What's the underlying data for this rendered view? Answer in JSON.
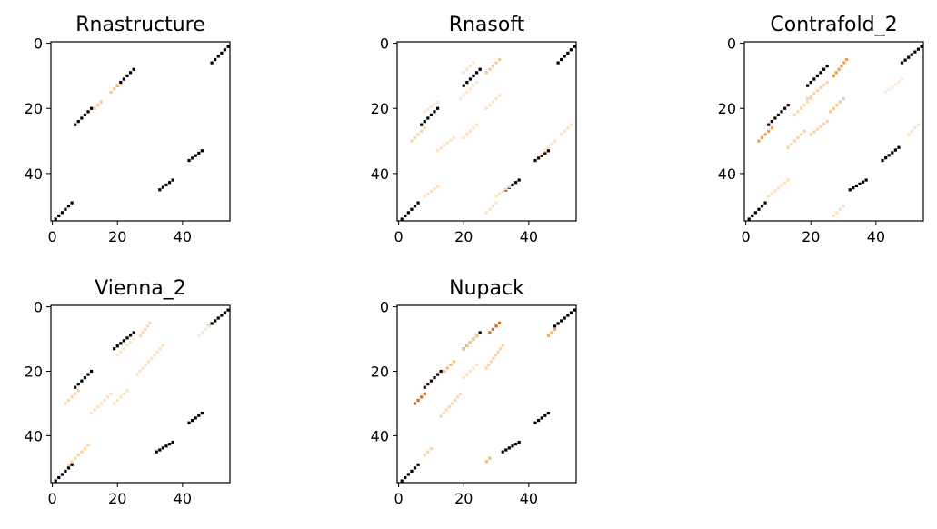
{
  "chart_data": [
    {
      "type": "heatmap",
      "title": "Rnastructure",
      "xlim": [
        0,
        55
      ],
      "ylim": [
        55,
        0
      ],
      "xticks": [
        0,
        20,
        40
      ],
      "yticks": [
        0,
        20,
        40
      ],
      "colormap": "white-orange-black",
      "cells": [
        {
          "segment": [
            [
              49,
              6
            ],
            [
              54,
              1
            ]
          ],
          "value": 1.0
        },
        {
          "segment": [
            [
              20,
              13
            ],
            [
              25,
              8
            ]
          ],
          "value": 1.0
        },
        {
          "segment": [
            [
              7,
              25
            ],
            [
              12,
              20
            ]
          ],
          "value": 1.0
        },
        {
          "segment": [
            [
              42,
              36
            ],
            [
              46,
              33
            ]
          ],
          "value": 1.0
        },
        {
          "segment": [
            [
              33,
              45
            ],
            [
              37,
              42
            ]
          ],
          "value": 1.0
        },
        {
          "segment": [
            [
              1,
              54
            ],
            [
              6,
              49
            ]
          ],
          "value": 1.0
        },
        {
          "segment": [
            [
              18,
              15
            ],
            [
              20,
              13
            ]
          ],
          "value": 0.25
        },
        {
          "segment": [
            [
              13,
              20
            ],
            [
              15,
              18
            ]
          ],
          "value": 0.25
        }
      ]
    },
    {
      "type": "heatmap",
      "title": "Rnasoft",
      "xlim": [
        0,
        55
      ],
      "ylim": [
        55,
        0
      ],
      "xticks": [
        0,
        20,
        40
      ],
      "yticks": [
        0,
        20,
        40
      ],
      "colormap": "white-orange-black",
      "cells": [
        {
          "segment": [
            [
              49,
              6
            ],
            [
              54,
              1
            ]
          ],
          "value": 1.0
        },
        {
          "segment": [
            [
              20,
              13
            ],
            [
              25,
              8
            ]
          ],
          "value": 1.0
        },
        {
          "segment": [
            [
              7,
              25
            ],
            [
              12,
              20
            ]
          ],
          "value": 1.0
        },
        {
          "segment": [
            [
              42,
              36
            ],
            [
              46,
              33
            ]
          ],
          "value": 0.95
        },
        {
          "segment": [
            [
              33,
              45
            ],
            [
              37,
              42
            ]
          ],
          "value": 1.0
        },
        {
          "segment": [
            [
              1,
              54
            ],
            [
              6,
              49
            ]
          ],
          "value": 1.0
        },
        {
          "segment": [
            [
              20,
              9
            ],
            [
              23,
              6
            ]
          ],
          "value": 0.15
        },
        {
          "segment": [
            [
              27,
              9
            ],
            [
              31,
              5
            ]
          ],
          "value": 0.25
        },
        {
          "segment": [
            [
              19,
              17
            ],
            [
              24,
              12
            ]
          ],
          "value": 0.12
        },
        {
          "segment": [
            [
              8,
              21
            ],
            [
              12,
              18
            ]
          ],
          "value": 0.12
        },
        {
          "segment": [
            [
              27,
              20
            ],
            [
              31,
              16
            ]
          ],
          "value": 0.15
        },
        {
          "segment": [
            [
              4,
              30
            ],
            [
              8,
              26
            ]
          ],
          "value": 0.2
        },
        {
          "segment": [
            [
              12,
              33
            ],
            [
              17,
              29
            ]
          ],
          "value": 0.15
        },
        {
          "segment": [
            [
              20,
              29
            ],
            [
              24,
              25
            ]
          ],
          "value": 0.15
        },
        {
          "segment": [
            [
              8,
              47
            ],
            [
              12,
              44
            ]
          ],
          "value": 0.15
        },
        {
          "segment": [
            [
              27,
              52
            ],
            [
              30,
              49
            ]
          ],
          "value": 0.15
        },
        {
          "segment": [
            [
              30,
              47
            ],
            [
              34,
              44
            ]
          ],
          "value": 0.15
        },
        {
          "segment": [
            [
              44,
              34
            ],
            [
              48,
              30
            ]
          ],
          "value": 0.15
        },
        {
          "segment": [
            [
              50,
              28
            ],
            [
              53,
              25
            ]
          ],
          "value": 0.15
        }
      ]
    },
    {
      "type": "heatmap",
      "title": "Contrafold_2",
      "xlim": [
        0,
        55
      ],
      "ylim": [
        55,
        0
      ],
      "xticks": [
        0,
        20,
        40
      ],
      "yticks": [
        0,
        20,
        40
      ],
      "colormap": "white-orange-black",
      "cells": [
        {
          "segment": [
            [
              48,
              6
            ],
            [
              54,
              1
            ]
          ],
          "value": 1.0
        },
        {
          "segment": [
            [
              19,
              13
            ],
            [
              25,
              7
            ]
          ],
          "value": 1.0
        },
        {
          "segment": [
            [
              7,
              25
            ],
            [
              13,
              19
            ]
          ],
          "value": 0.95
        },
        {
          "segment": [
            [
              42,
              36
            ],
            [
              47,
              32
            ]
          ],
          "value": 1.0
        },
        {
          "segment": [
            [
              32,
              45
            ],
            [
              37,
              42
            ]
          ],
          "value": 1.0
        },
        {
          "segment": [
            [
              1,
              54
            ],
            [
              6,
              49
            ]
          ],
          "value": 1.0
        },
        {
          "segment": [
            [
              27,
              10
            ],
            [
              31,
              5
            ]
          ],
          "value": 0.4
        },
        {
          "segment": [
            [
              4,
              30
            ],
            [
              8,
              26
            ]
          ],
          "value": 0.4
        },
        {
          "segment": [
            [
              19,
              17
            ],
            [
              25,
              12
            ]
          ],
          "value": 0.2
        },
        {
          "segment": [
            [
              15,
              22
            ],
            [
              20,
              17
            ]
          ],
          "value": 0.18
        },
        {
          "segment": [
            [
              26,
              21
            ],
            [
              30,
              17
            ]
          ],
          "value": 0.25
        },
        {
          "segment": [
            [
              13,
              32
            ],
            [
              18,
              27
            ]
          ],
          "value": 0.2
        },
        {
          "segment": [
            [
              20,
              28
            ],
            [
              25,
              24
            ]
          ],
          "value": 0.2
        },
        {
          "segment": [
            [
              7,
              47
            ],
            [
              13,
              42
            ]
          ],
          "value": 0.15
        },
        {
          "segment": [
            [
              27,
              53
            ],
            [
              30,
              50
            ]
          ],
          "value": 0.15
        },
        {
          "segment": [
            [
              43,
              15
            ],
            [
              48,
              11
            ]
          ],
          "value": 0.1
        },
        {
          "segment": [
            [
              50,
              28
            ],
            [
              53,
              25
            ]
          ],
          "value": 0.15
        }
      ]
    },
    {
      "type": "heatmap",
      "title": "Vienna_2",
      "xlim": [
        0,
        55
      ],
      "ylim": [
        55,
        0
      ],
      "xticks": [
        0,
        20,
        40
      ],
      "yticks": [
        0,
        20,
        40
      ],
      "colormap": "white-orange-black",
      "cells": [
        {
          "segment": [
            [
              48,
              6
            ],
            [
              54,
              1
            ]
          ],
          "value": 1.0
        },
        {
          "segment": [
            [
              19,
              13
            ],
            [
              25,
              8
            ]
          ],
          "value": 1.0
        },
        {
          "segment": [
            [
              7,
              25
            ],
            [
              12,
              20
            ]
          ],
          "value": 1.0
        },
        {
          "segment": [
            [
              42,
              36
            ],
            [
              46,
              33
            ]
          ],
          "value": 1.0
        },
        {
          "segment": [
            [
              32,
              45
            ],
            [
              37,
              42
            ]
          ],
          "value": 1.0
        },
        {
          "segment": [
            [
              1,
              54
            ],
            [
              6,
              49
            ]
          ],
          "value": 1.0
        },
        {
          "segment": [
            [
              27,
              9
            ],
            [
              30,
              5
            ]
          ],
          "value": 0.18
        },
        {
          "segment": [
            [
              20,
              15
            ],
            [
              25,
              10
            ]
          ],
          "value": 0.12
        },
        {
          "segment": [
            [
              26,
              21
            ],
            [
              34,
              12
            ]
          ],
          "value": 0.15
        },
        {
          "segment": [
            [
              4,
              30
            ],
            [
              8,
              26
            ]
          ],
          "value": 0.2
        },
        {
          "segment": [
            [
              12,
              33
            ],
            [
              18,
              27
            ]
          ],
          "value": 0.15
        },
        {
          "segment": [
            [
              19,
              30
            ],
            [
              23,
              26
            ]
          ],
          "value": 0.15
        },
        {
          "segment": [
            [
              5,
              49
            ],
            [
              11,
              43
            ]
          ],
          "value": 0.2
        },
        {
          "segment": [
            [
              45,
              9
            ],
            [
              48,
              6
            ]
          ],
          "value": 0.12
        }
      ]
    },
    {
      "type": "heatmap",
      "title": "Nupack",
      "xlim": [
        0,
        55
      ],
      "ylim": [
        55,
        0
      ],
      "xticks": [
        0,
        20,
        40
      ],
      "yticks": [
        0,
        20,
        40
      ],
      "colormap": "white-orange-black",
      "cells": [
        {
          "segment": [
            [
              48,
              6
            ],
            [
              54,
              1
            ]
          ],
          "value": 1.0
        },
        {
          "segment": [
            [
              20,
              13
            ],
            [
              25,
              8
            ]
          ],
          "value": 1.0
        },
        {
          "segment": [
            [
              8,
              25
            ],
            [
              13,
              20
            ]
          ],
          "value": 0.95
        },
        {
          "segment": [
            [
              42,
              36
            ],
            [
              46,
              33
            ]
          ],
          "value": 1.0
        },
        {
          "segment": [
            [
              32,
              45
            ],
            [
              37,
              42
            ]
          ],
          "value": 1.0
        },
        {
          "segment": [
            [
              1,
              54
            ],
            [
              6,
              49
            ]
          ],
          "value": 1.0
        },
        {
          "segment": [
            [
              28,
              8
            ],
            [
              31,
              5
            ]
          ],
          "value": 0.55
        },
        {
          "segment": [
            [
              5,
              30
            ],
            [
              8,
              27
            ]
          ],
          "value": 0.55
        },
        {
          "segment": [
            [
              20,
              13
            ],
            [
              24,
              9
            ]
          ],
          "value": 0.25
        },
        {
          "segment": [
            [
              14,
              20
            ],
            [
              17,
              17
            ]
          ],
          "value": 0.3
        },
        {
          "segment": [
            [
              27,
              19
            ],
            [
              32,
              12
            ]
          ],
          "value": 0.2
        },
        {
          "segment": [
            [
              13,
              34
            ],
            [
              19,
              27
            ]
          ],
          "value": 0.18
        },
        {
          "segment": [
            [
              20,
              22
            ],
            [
              24,
              18
            ]
          ],
          "value": 0.15
        },
        {
          "segment": [
            [
              46,
              9
            ],
            [
              48,
              7
            ]
          ],
          "value": 0.35
        },
        {
          "segment": [
            [
              8,
              46
            ],
            [
              10,
              44
            ]
          ],
          "value": 0.2
        },
        {
          "segment": [
            [
              27,
              48
            ],
            [
              28,
              47
            ]
          ],
          "value": 0.3
        }
      ]
    }
  ]
}
